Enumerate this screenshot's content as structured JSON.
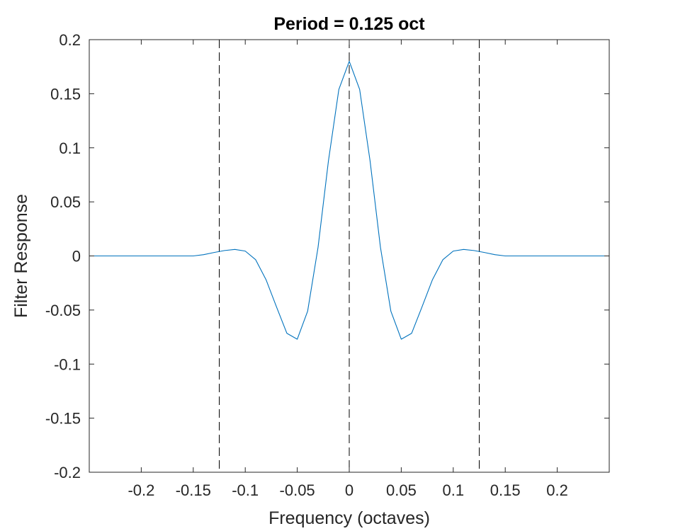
{
  "chart_data": {
    "type": "line",
    "title": "Period = 0.125 oct",
    "xlabel": "Frequency (octaves)",
    "ylabel": "Filter Response",
    "xlim": [
      -0.25,
      0.25
    ],
    "ylim": [
      -0.2,
      0.2
    ],
    "xticks": [
      -0.2,
      -0.15,
      -0.1,
      -0.05,
      0,
      0.05,
      0.1,
      0.15,
      0.2
    ],
    "xtick_labels": [
      "-0.2",
      "-0.15",
      "-0.1",
      "-0.05",
      "0",
      "0.05",
      "0.1",
      "0.15",
      "0.2"
    ],
    "yticks": [
      -0.2,
      -0.15,
      -0.1,
      -0.05,
      0,
      0.05,
      0.1,
      0.15,
      0.2
    ],
    "ytick_labels": [
      "-0.2",
      "-0.15",
      "-0.1",
      "-0.05",
      "0",
      "0.05",
      "0.1",
      "0.15",
      "0.2"
    ],
    "grid": false,
    "box": true,
    "series": [
      {
        "color": "#0072bd",
        "x": [
          -0.25,
          -0.24,
          -0.23,
          -0.22,
          -0.21,
          -0.2,
          -0.19,
          -0.18,
          -0.17,
          -0.16,
          -0.15,
          -0.14,
          -0.13,
          -0.12,
          -0.11,
          -0.1,
          -0.09,
          -0.08,
          -0.07,
          -0.06,
          -0.05,
          -0.04,
          -0.03,
          -0.02,
          -0.01,
          0,
          0.01,
          0.02,
          0.03,
          0.04,
          0.05,
          0.06,
          0.07,
          0.08,
          0.09,
          0.1,
          0.11,
          0.12,
          0.13,
          0.14,
          0.15,
          0.16,
          0.17,
          0.18,
          0.19,
          0.2,
          0.21,
          0.22,
          0.23,
          0.24,
          0.25
        ],
        "y": [
          0,
          0,
          0,
          0,
          0,
          0,
          0,
          0,
          0,
          0,
          0,
          0.0012,
          0.0032,
          0.005,
          0.006,
          0.0045,
          -0.0035,
          -0.022,
          -0.047,
          -0.0715,
          -0.077,
          -0.051,
          0.008,
          0.088,
          0.154,
          0.18,
          0.154,
          0.088,
          0.008,
          -0.051,
          -0.077,
          -0.0715,
          -0.047,
          -0.022,
          -0.0035,
          0.0045,
          0.006,
          0.005,
          0.0032,
          0.0012,
          0,
          0,
          0,
          0,
          0,
          0,
          0,
          0,
          0,
          0,
          0
        ]
      }
    ],
    "vlines": {
      "x": [
        -0.125,
        0,
        0.125
      ],
      "color": "#000000",
      "style": "dashed"
    }
  }
}
